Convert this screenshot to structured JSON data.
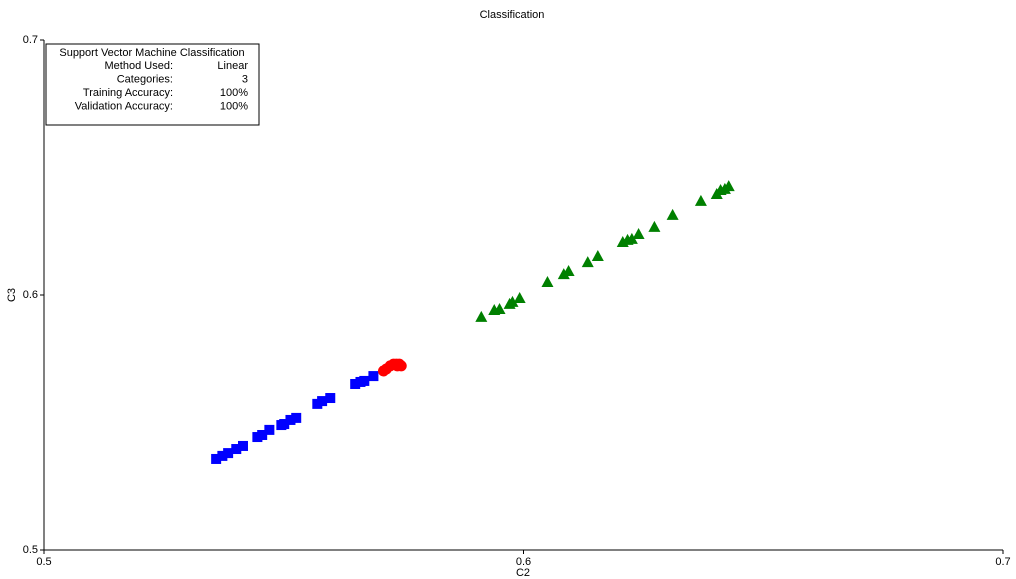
{
  "chart_data": {
    "type": "scatter",
    "title": "Classification",
    "x_label": "C2",
    "y_label": "C3",
    "xlim": [
      0.5,
      0.7
    ],
    "ylim": [
      0.5,
      0.7
    ],
    "xticks": [
      0.5,
      0.6,
      0.7
    ],
    "yticks": [
      0.5,
      0.6,
      0.7
    ],
    "grid": false,
    "info_box": {
      "title": "Support Vector Machine Classification",
      "rows": [
        {
          "label": "Method Used:",
          "value": "Linear",
          "color": "#0000ff"
        },
        {
          "label": "Categories:",
          "value": "3",
          "color": "#0000ff"
        },
        {
          "label": "Training Accuracy:",
          "value": "100%",
          "color": "#0000ff"
        },
        {
          "label": "Validation Accuracy:",
          "value": "100%",
          "color": "#ff0000"
        }
      ]
    },
    "series": [
      {
        "color": "#0000ff",
        "marker": "square",
        "x": [
          0.5359,
          0.5372,
          0.5384,
          0.5401,
          0.5415,
          0.5445,
          0.5455,
          0.547,
          0.5495,
          0.5501,
          0.5514,
          0.5526,
          0.557,
          0.558,
          0.5597,
          0.5649,
          0.566,
          0.5668,
          0.5687
        ],
        "values": [
          0.5357,
          0.5369,
          0.538,
          0.5396,
          0.5408,
          0.5443,
          0.5451,
          0.5471,
          0.549,
          0.5494,
          0.551,
          0.5518,
          0.5573,
          0.5584,
          0.5596,
          0.5651,
          0.5659,
          0.5663,
          0.5682
        ]
      },
      {
        "color": "#ff0000",
        "marker": "circle",
        "x": [
          0.5708,
          0.5714,
          0.5722,
          0.5729,
          0.5735,
          0.5741,
          0.5745,
          0.5737
        ],
        "values": [
          0.5702,
          0.571,
          0.5722,
          0.5729,
          0.5729,
          0.5729,
          0.5722,
          0.5722
        ]
      },
      {
        "color": "#008000",
        "marker": "triangle",
        "x": [
          0.5912,
          0.5939,
          0.595,
          0.5971,
          0.5977,
          0.5992,
          0.605,
          0.6084,
          0.6094,
          0.6134,
          0.6155,
          0.6207,
          0.6217,
          0.6226,
          0.624,
          0.6273,
          0.6311,
          0.637,
          0.6403,
          0.6411,
          0.642,
          0.6428
        ],
        "values": [
          0.5914,
          0.5941,
          0.5945,
          0.5965,
          0.5973,
          0.5988,
          0.6051,
          0.6082,
          0.6094,
          0.6129,
          0.6153,
          0.6208,
          0.6216,
          0.622,
          0.6239,
          0.6267,
          0.6314,
          0.6369,
          0.6396,
          0.6412,
          0.6416,
          0.6427
        ]
      }
    ]
  }
}
